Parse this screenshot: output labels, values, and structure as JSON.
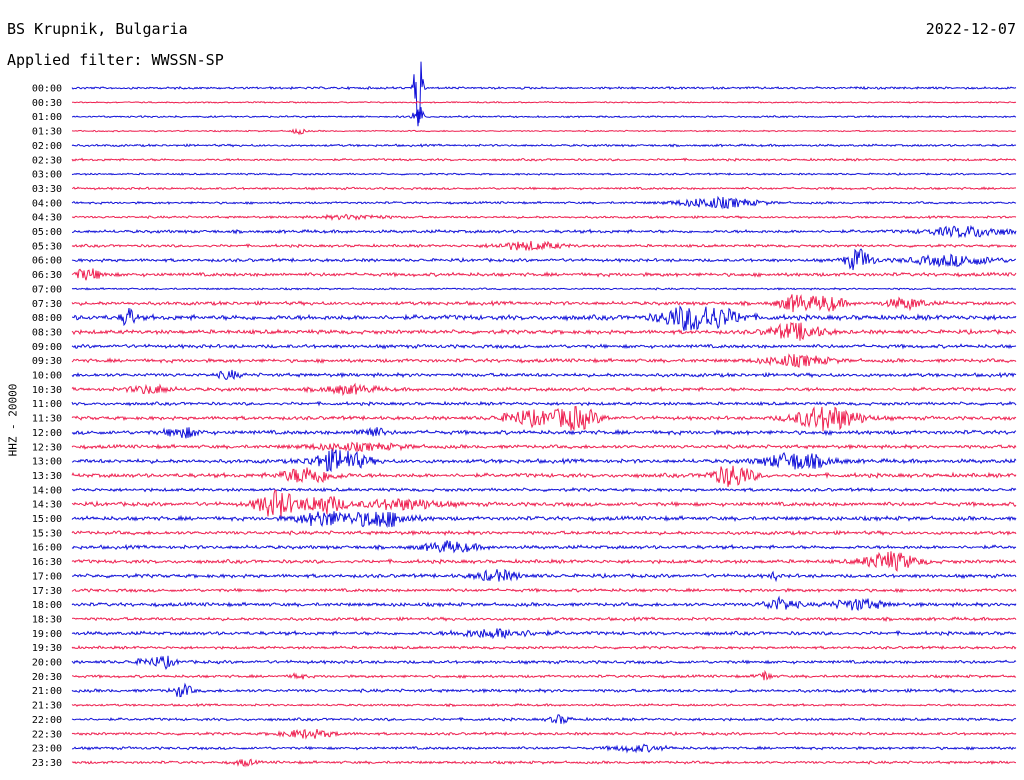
{
  "header": {
    "station": "BS Krupnik, Bulgaria",
    "date": "2022-12-07",
    "filter": "Applied filter: WWSSN-SP",
    "channel": "HHZ - 20000"
  },
  "colors": {
    "even": "#1010d8",
    "odd": "#ee2050"
  },
  "chart_data": {
    "type": "line",
    "title": "",
    "xlabel": "",
    "ylabel": "HHZ - 20000",
    "rows": [
      "00:00",
      "00:30",
      "01:00",
      "01:30",
      "02:00",
      "02:30",
      "03:00",
      "03:30",
      "04:00",
      "04:30",
      "05:00",
      "05:30",
      "06:00",
      "06:30",
      "07:00",
      "07:30",
      "08:00",
      "08:30",
      "09:00",
      "09:30",
      "10:00",
      "10:30",
      "11:00",
      "11:30",
      "12:00",
      "12:30",
      "13:00",
      "13:30",
      "14:00",
      "14:30",
      "15:00",
      "15:30",
      "16:00",
      "16:30",
      "17:00",
      "17:30",
      "18:00",
      "18:30",
      "19:00",
      "19:30",
      "20:00",
      "20:30",
      "21:00",
      "21:30",
      "22:00",
      "22:30",
      "23:00",
      "23:30"
    ],
    "row_minutes": 30,
    "base_noise": [
      1,
      0.6,
      0.8,
      0.6,
      1,
      1,
      0.8,
      1,
      1,
      1,
      1.4,
      1.2,
      1.4,
      1.6,
      0.8,
      1.6,
      2.2,
      1.8,
      1.6,
      1.6,
      1.6,
      1.6,
      1.4,
      1.6,
      1.8,
      1.6,
      1.8,
      1.8,
      1.4,
      1.8,
      1.8,
      1.6,
      1.6,
      1.6,
      1.6,
      1.4,
      1.6,
      1.4,
      1.6,
      1.2,
      1.4,
      1.2,
      1.4,
      1.0,
      1.2,
      1.2,
      1.2,
      1.2
    ],
    "events": [
      {
        "row": 0,
        "minute": 11.0,
        "amp": 46,
        "width": 0.12
      },
      {
        "row": 2,
        "minute": 11.0,
        "amp": 14,
        "width": 0.15
      },
      {
        "row": 3,
        "minute": 7.2,
        "amp": 3,
        "width": 0.2
      },
      {
        "row": 8,
        "minute": 20.5,
        "amp": 5,
        "width": 1.2
      },
      {
        "row": 9,
        "minute": 9.0,
        "amp": 2,
        "width": 1.0
      },
      {
        "row": 10,
        "minute": 28.5,
        "amp": 5,
        "width": 1.2
      },
      {
        "row": 11,
        "minute": 14.5,
        "amp": 4,
        "width": 1.0
      },
      {
        "row": 12,
        "minute": 25.0,
        "amp": 11,
        "width": 0.4
      },
      {
        "row": 12,
        "minute": 28.0,
        "amp": 5,
        "width": 1.3
      },
      {
        "row": 13,
        "minute": 0.5,
        "amp": 5,
        "width": 0.5
      },
      {
        "row": 15,
        "minute": 23.0,
        "amp": 8,
        "width": 0.5
      },
      {
        "row": 15,
        "minute": 24.0,
        "amp": 7,
        "width": 0.5
      },
      {
        "row": 15,
        "minute": 26.5,
        "amp": 5,
        "width": 0.6
      },
      {
        "row": 16,
        "minute": 1.8,
        "amp": 10,
        "width": 0.2
      },
      {
        "row": 16,
        "minute": 19.5,
        "amp": 10,
        "width": 0.8
      },
      {
        "row": 16,
        "minute": 20.5,
        "amp": 8,
        "width": 0.8
      },
      {
        "row": 17,
        "minute": 23.0,
        "amp": 8,
        "width": 0.8
      },
      {
        "row": 19,
        "minute": 23.0,
        "amp": 5,
        "width": 1.0
      },
      {
        "row": 20,
        "minute": 5.0,
        "amp": 4,
        "width": 0.3
      },
      {
        "row": 21,
        "minute": 2.5,
        "amp": 4,
        "width": 0.6
      },
      {
        "row": 21,
        "minute": 8.8,
        "amp": 4,
        "width": 0.8
      },
      {
        "row": 23,
        "minute": 14.5,
        "amp": 7,
        "width": 0.8
      },
      {
        "row": 23,
        "minute": 16.0,
        "amp": 11,
        "width": 0.7
      },
      {
        "row": 23,
        "minute": 24.0,
        "amp": 12,
        "width": 1.0
      },
      {
        "row": 24,
        "minute": 3.5,
        "amp": 5,
        "width": 0.5
      },
      {
        "row": 24,
        "minute": 9.5,
        "amp": 5,
        "width": 0.4
      },
      {
        "row": 25,
        "minute": 9.0,
        "amp": 3,
        "width": 1.5
      },
      {
        "row": 26,
        "minute": 8.5,
        "amp": 11,
        "width": 0.8
      },
      {
        "row": 26,
        "minute": 23.0,
        "amp": 8,
        "width": 1.0
      },
      {
        "row": 27,
        "minute": 7.5,
        "amp": 8,
        "width": 0.8
      },
      {
        "row": 27,
        "minute": 21.0,
        "amp": 11,
        "width": 0.6
      },
      {
        "row": 29,
        "minute": 6.5,
        "amp": 13,
        "width": 0.6
      },
      {
        "row": 29,
        "minute": 8.0,
        "amp": 9,
        "width": 0.6
      },
      {
        "row": 29,
        "minute": 10.5,
        "amp": 5,
        "width": 1.2
      },
      {
        "row": 30,
        "minute": 8.0,
        "amp": 7,
        "width": 0.8
      },
      {
        "row": 30,
        "minute": 9.8,
        "amp": 8,
        "width": 0.9
      },
      {
        "row": 32,
        "minute": 12.0,
        "amp": 5,
        "width": 0.8
      },
      {
        "row": 33,
        "minute": 26.0,
        "amp": 9,
        "width": 0.8
      },
      {
        "row": 34,
        "minute": 13.5,
        "amp": 5,
        "width": 0.7
      },
      {
        "row": 34,
        "minute": 22.3,
        "amp": 5,
        "width": 0.1
      },
      {
        "row": 36,
        "minute": 22.5,
        "amp": 6,
        "width": 0.5
      },
      {
        "row": 36,
        "minute": 25.0,
        "amp": 5,
        "width": 0.8
      },
      {
        "row": 38,
        "minute": 13.5,
        "amp": 4,
        "width": 1.2
      },
      {
        "row": 40,
        "minute": 2.5,
        "amp": 3,
        "width": 0.5
      },
      {
        "row": 40,
        "minute": 3.0,
        "amp": 4,
        "width": 0.3
      },
      {
        "row": 41,
        "minute": 7.2,
        "amp": 3,
        "width": 0.2
      },
      {
        "row": 41,
        "minute": 22.0,
        "amp": 5,
        "width": 0.2
      },
      {
        "row": 42,
        "minute": 3.5,
        "amp": 6,
        "width": 0.3
      },
      {
        "row": 44,
        "minute": 15.5,
        "amp": 4,
        "width": 0.3
      },
      {
        "row": 45,
        "minute": 7.5,
        "amp": 4,
        "width": 0.8
      },
      {
        "row": 46,
        "minute": 18.0,
        "amp": 3,
        "width": 0.8
      },
      {
        "row": 47,
        "minute": 5.5,
        "amp": 3,
        "width": 0.3
      }
    ]
  }
}
